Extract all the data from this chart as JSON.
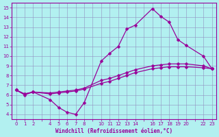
{
  "xlabel": "Windchill (Refroidissement éolien,°C)",
  "bg_color": "#b2f0f0",
  "line_color": "#990099",
  "grid_color": "#9090c0",
  "hours": [
    0,
    1,
    2,
    4,
    5,
    6,
    7,
    8,
    10,
    11,
    12,
    13,
    14,
    16,
    17,
    18,
    19,
    20,
    22,
    23
  ],
  "line_main": [
    6.5,
    6.0,
    6.3,
    5.5,
    4.7,
    4.2,
    4.0,
    5.2,
    9.5,
    10.3,
    11.0,
    12.8,
    13.2,
    14.9,
    14.1,
    13.5,
    11.7,
    11.1,
    10.0,
    8.7
  ],
  "line_up": [
    6.5,
    6.1,
    6.3,
    6.2,
    6.3,
    6.4,
    6.5,
    6.7,
    7.5,
    7.7,
    8.0,
    8.3,
    8.6,
    9.0,
    9.1,
    9.2,
    9.2,
    9.2,
    9.0,
    8.7
  ],
  "line_low": [
    6.5,
    6.1,
    6.3,
    6.1,
    6.2,
    6.3,
    6.4,
    6.6,
    7.2,
    7.4,
    7.7,
    8.0,
    8.3,
    8.7,
    8.8,
    8.9,
    8.9,
    8.9,
    8.8,
    8.7
  ],
  "all_xticks": [
    0,
    1,
    2,
    3,
    4,
    5,
    6,
    7,
    8,
    9,
    10,
    11,
    12,
    13,
    14,
    15,
    16,
    17,
    18,
    19,
    20,
    21,
    22,
    23
  ],
  "labeled_xticks": [
    0,
    1,
    2,
    4,
    5,
    6,
    7,
    8,
    10,
    11,
    12,
    13,
    14,
    16,
    17,
    18,
    19,
    20,
    22,
    23
  ],
  "xlim": [
    -0.5,
    23.5
  ],
  "ylim": [
    3.5,
    15.5
  ],
  "yticks": [
    4,
    5,
    6,
    7,
    8,
    9,
    10,
    11,
    12,
    13,
    14,
    15
  ],
  "marker": "D",
  "markersize": 2.5,
  "linewidth": 0.9,
  "tick_labelsize": 5.0,
  "xlabel_fontsize": 5.5
}
